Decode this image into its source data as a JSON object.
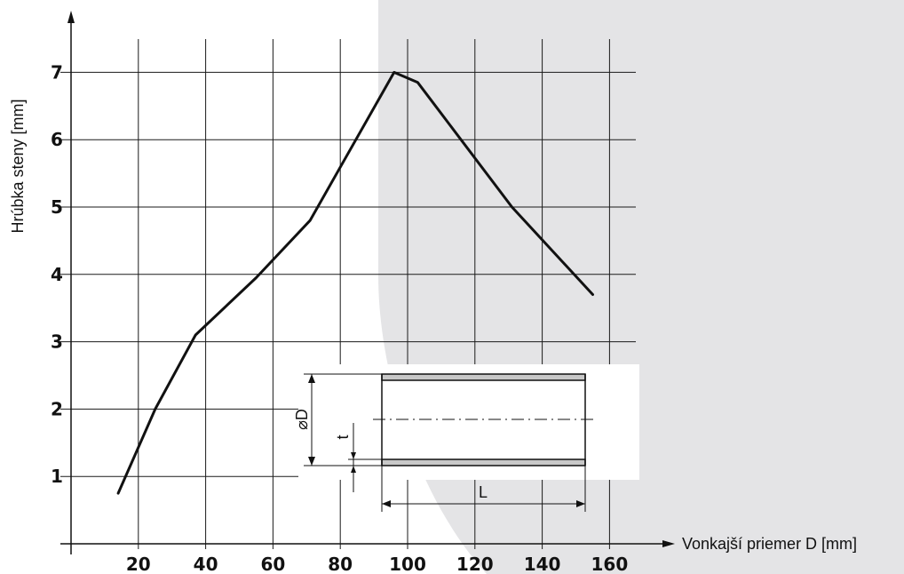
{
  "chart_data": {
    "type": "line",
    "title": "",
    "xlabel": "Vonkajší priemer D [mm]",
    "ylabel": "Hrúbka steny  [mm]",
    "xlim": [
      0,
      170
    ],
    "ylim": [
      0,
      7.7
    ],
    "grid": true,
    "xticks": [
      20,
      40,
      60,
      80,
      100,
      120,
      140,
      160
    ],
    "xtick_labels": [
      "20",
      "40",
      "60",
      "80",
      "100",
      "120",
      "140",
      "160"
    ],
    "yticks": [
      1,
      2,
      3,
      4,
      5,
      6,
      7
    ],
    "ytick_labels": [
      "1",
      "2",
      "3",
      "4",
      "5",
      "6",
      "7"
    ],
    "series": [
      {
        "x": [
          14,
          25,
          37,
          55,
          71,
          96,
          103,
          131,
          155
        ],
        "y": [
          0.75,
          2.0,
          3.1,
          3.95,
          4.8,
          7.0,
          6.85,
          5.0,
          3.7
        ]
      }
    ],
    "inset_diagram": {
      "diameter_label": "⌀D",
      "thickness_label": "t",
      "length_label": "L"
    }
  },
  "colors": {
    "line": "#111111",
    "grid": "#1a1a1a",
    "shade": "#e4e4e6",
    "pipe_wall": "#c8c8c8"
  }
}
